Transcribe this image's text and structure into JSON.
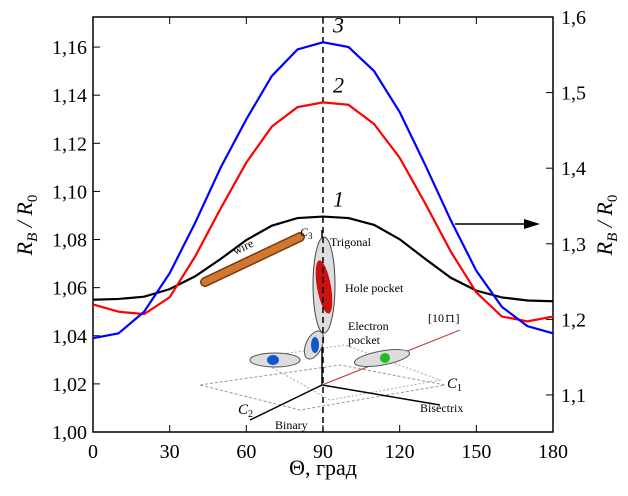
{
  "chart_data": {
    "type": "line",
    "x_label": "Θ, град",
    "y_label": {
      "main": "R",
      "sub": "B",
      "rest": " / R",
      "sub2": "0"
    },
    "y2_label": {
      "main": "R",
      "sub": "B",
      "rest": " / R",
      "sub2": "0"
    },
    "x": [
      0,
      10,
      20,
      30,
      40,
      50,
      60,
      70,
      80,
      90,
      100,
      110,
      120,
      130,
      140,
      150,
      160,
      170,
      180
    ],
    "xlim": [
      0,
      180
    ],
    "xticks": [
      0,
      30,
      60,
      90,
      120,
      150,
      180
    ],
    "ylim": [
      1.0,
      1.1725
    ],
    "yticks": [
      {
        "value": 1.0,
        "label": "1,00"
      },
      {
        "value": 1.02,
        "label": "1,02"
      },
      {
        "value": 1.04,
        "label": "1,04"
      },
      {
        "value": 1.06,
        "label": "1,06"
      },
      {
        "value": 1.08,
        "label": "1,08"
      },
      {
        "value": 1.1,
        "label": "1,10"
      },
      {
        "value": 1.12,
        "label": "1,12"
      },
      {
        "value": 1.14,
        "label": "1,14"
      },
      {
        "value": 1.16,
        "label": "1,16"
      }
    ],
    "y2lim": [
      1.051,
      1.6
    ],
    "y2ticks": [
      {
        "value": 1.1,
        "label": "1,1"
      },
      {
        "value": 1.2,
        "label": "1,2"
      },
      {
        "value": 1.3,
        "label": "1,3"
      },
      {
        "value": 1.4,
        "label": "1,4"
      },
      {
        "value": 1.5,
        "label": "1,5"
      },
      {
        "value": 1.6,
        "label": "1,6"
      }
    ],
    "series": [
      {
        "name": "1",
        "color": "#000000",
        "axis": "y2",
        "values": [
          1.226,
          1.227,
          1.23,
          1.24,
          1.257,
          1.28,
          1.305,
          1.324,
          1.334,
          1.336,
          1.334,
          1.325,
          1.306,
          1.28,
          1.255,
          1.238,
          1.229,
          1.225,
          1.224
        ]
      },
      {
        "name": "2",
        "color": "#ff0000",
        "values": [
          1.053,
          1.05,
          1.049,
          1.056,
          1.073,
          1.093,
          1.112,
          1.127,
          1.135,
          1.137,
          1.136,
          1.128,
          1.114,
          1.095,
          1.075,
          1.058,
          1.048,
          1.046,
          1.048
        ]
      },
      {
        "name": "3",
        "color": "#0000ff",
        "values": [
          1.039,
          1.041,
          1.05,
          1.066,
          1.087,
          1.11,
          1.13,
          1.148,
          1.159,
          1.162,
          1.16,
          1.15,
          1.133,
          1.111,
          1.088,
          1.067,
          1.052,
          1.044,
          1.041
        ]
      }
    ],
    "inset": {
      "wire": "wire",
      "c3": {
        "main": "C",
        "sub": "3"
      },
      "trigonal": "Trigonal",
      "hole": "Hole pocket",
      "electron": [
        "Electron",
        "pocket"
      ],
      "direction": "[101̄1]",
      "c1": {
        "main": "C",
        "sub": "1"
      },
      "bisectrix": "Bisectrix",
      "c2": {
        "main": "C",
        "sub": "2"
      },
      "binary": "Binary"
    }
  }
}
